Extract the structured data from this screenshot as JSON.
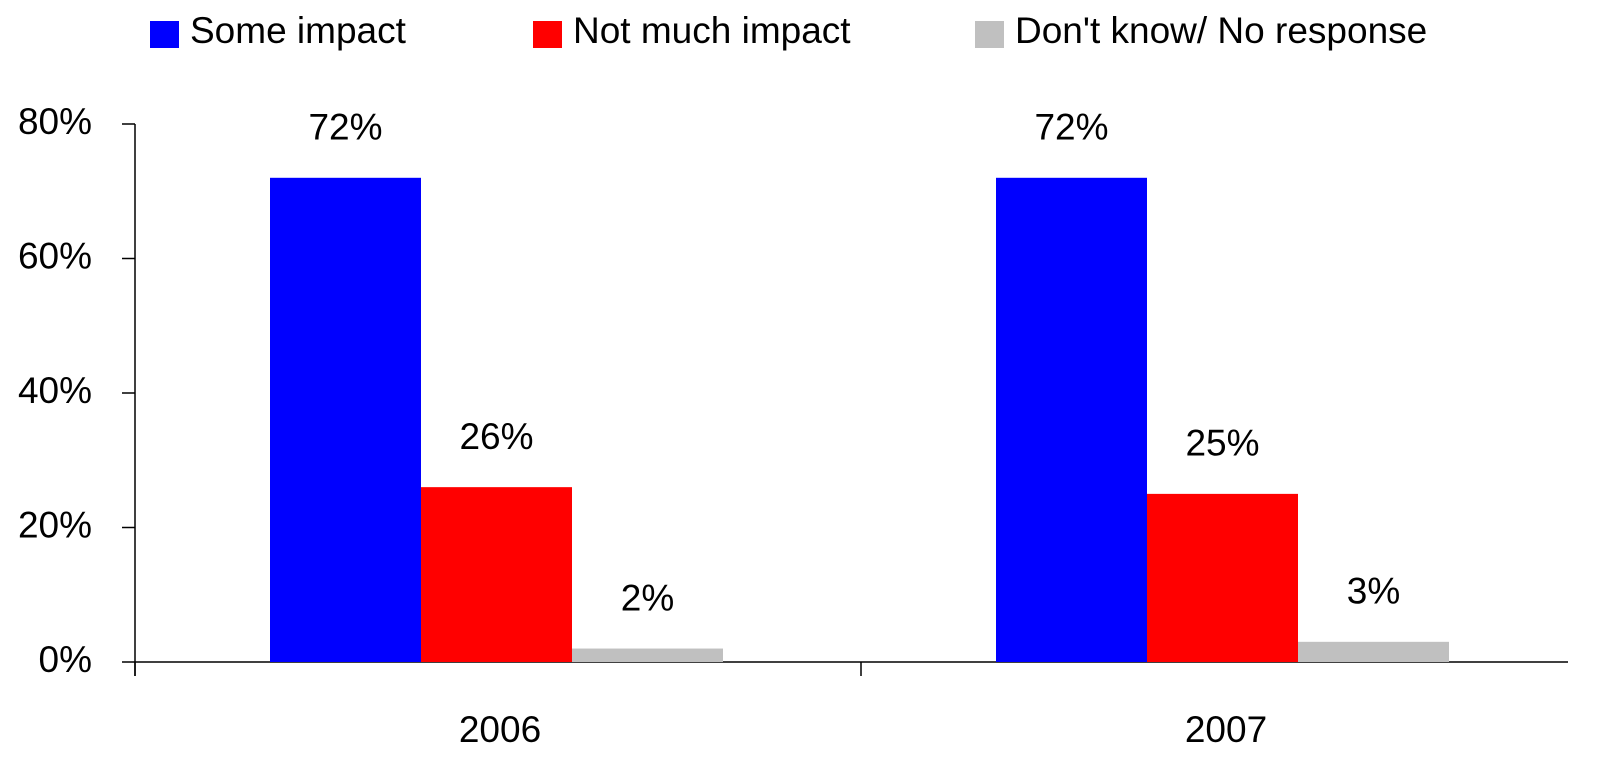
{
  "chart_data": {
    "type": "bar",
    "categories": [
      "2006",
      "2007"
    ],
    "series": [
      {
        "name": "Some impact",
        "color": "#0000ff",
        "values": [
          72,
          72
        ],
        "value_labels": [
          "72%",
          "72%"
        ]
      },
      {
        "name": "Not much impact",
        "color": "#ff0000",
        "values": [
          26,
          25
        ],
        "value_labels": [
          "26%",
          "25%"
        ]
      },
      {
        "name": "Don't know/ No response",
        "color": "#c0c0c0",
        "values": [
          2,
          3
        ],
        "value_labels": [
          "2%",
          "3%"
        ]
      }
    ],
    "ylim": [
      0,
      80
    ],
    "yticks": [
      {
        "value": 0,
        "label": "0%"
      },
      {
        "value": 20,
        "label": "20%"
      },
      {
        "value": 40,
        "label": "40%"
      },
      {
        "value": 60,
        "label": "60%"
      },
      {
        "value": 80,
        "label": "80%"
      }
    ],
    "legend": "top"
  }
}
